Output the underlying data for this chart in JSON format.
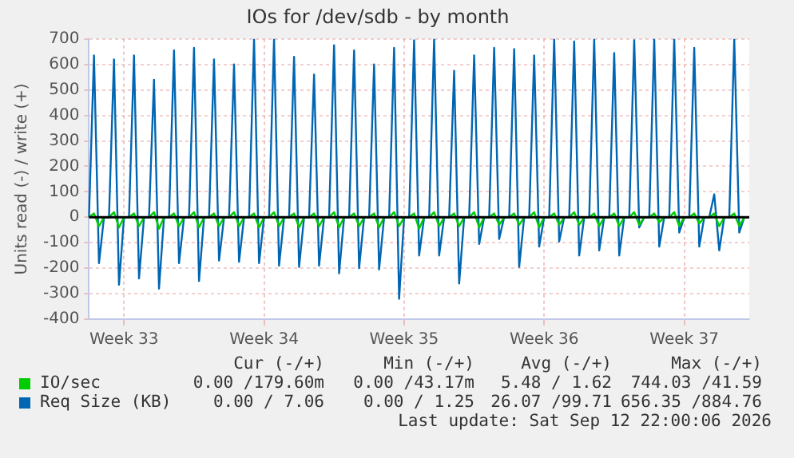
{
  "chart_data": {
    "type": "line",
    "title": "IOs for /dev/sdb - by month",
    "ylabel": "Units read (-) / write (+)",
    "categories": [
      null,
      null,
      null,
      null,
      null,
      null,
      null,
      "Week 33",
      null,
      null,
      null,
      null,
      null,
      null,
      null,
      null,
      null,
      null,
      null,
      null,
      null,
      null,
      null,
      null,
      null,
      null,
      null,
      null,
      null,
      null,
      null,
      null,
      null,
      null,
      null,
      "Week 34",
      null,
      null,
      null,
      null,
      null,
      null,
      null,
      null,
      null,
      null,
      null,
      null,
      null,
      null,
      null,
      null,
      null,
      null,
      null,
      null,
      null,
      null,
      null,
      null,
      null,
      null,
      null,
      "Week 35",
      null,
      null,
      null,
      null,
      null,
      null,
      null,
      null,
      null,
      null,
      null,
      null,
      null,
      null,
      null,
      null,
      null,
      null,
      null,
      null,
      null,
      null,
      null,
      null,
      null,
      null,
      null,
      "Week 36",
      null,
      null,
      null,
      null,
      null,
      null,
      null,
      null,
      null,
      null,
      null,
      null,
      null,
      null,
      null,
      null,
      null,
      null,
      null,
      null,
      null,
      null,
      null,
      null,
      null,
      null,
      null,
      "Week 37",
      null,
      null,
      null,
      null,
      null,
      null,
      null,
      null,
      null,
      null,
      null,
      null,
      null
    ],
    "series": [
      {
        "name": "IO/sec",
        "color": "#00cc00",
        "values": [
          0,
          15,
          -35,
          0,
          0,
          20,
          -40,
          0,
          0,
          15,
          -35,
          0,
          0,
          20,
          -45,
          0,
          0,
          15,
          -35,
          0,
          0,
          20,
          -40,
          0,
          0,
          15,
          -35,
          0,
          0,
          20,
          -35,
          0,
          0,
          15,
          -40,
          0,
          0,
          20,
          -35,
          0,
          0,
          15,
          -40,
          0,
          0,
          15,
          -35,
          0,
          0,
          20,
          -40,
          0,
          0,
          15,
          -35,
          0,
          0,
          15,
          -40,
          0,
          0,
          20,
          -35,
          0,
          0,
          15,
          -45,
          0,
          0,
          20,
          -35,
          0,
          0,
          15,
          -35,
          0,
          0,
          20,
          -40,
          0,
          0,
          15,
          -30,
          0,
          0,
          15,
          -30,
          0,
          0,
          20,
          -40,
          0,
          0,
          15,
          -30,
          0,
          0,
          20,
          -30,
          0,
          0,
          15,
          -35,
          0,
          0,
          15,
          -35,
          0,
          0,
          20,
          -30,
          0,
          0,
          15,
          -20,
          0,
          0,
          20,
          -35,
          0,
          0,
          15,
          -25,
          0,
          0,
          15,
          -35,
          0,
          0,
          15,
          -35,
          0,
          0
        ]
      },
      {
        "name": "Req Size (KB)",
        "color": "#0066b3",
        "values": [
          0,
          635,
          -180,
          0,
          0,
          620,
          -265,
          0,
          0,
          635,
          -240,
          0,
          0,
          540,
          -280,
          0,
          0,
          655,
          -180,
          0,
          0,
          665,
          -250,
          0,
          0,
          620,
          -170,
          0,
          0,
          600,
          -175,
          0,
          0,
          700,
          -180,
          0,
          0,
          700,
          -190,
          0,
          0,
          630,
          -195,
          0,
          0,
          560,
          -190,
          0,
          0,
          675,
          -220,
          0,
          0,
          655,
          -200,
          0,
          0,
          600,
          -205,
          0,
          0,
          665,
          -320,
          0,
          0,
          695,
          -150,
          0,
          0,
          700,
          -150,
          0,
          0,
          575,
          -260,
          0,
          0,
          635,
          -105,
          0,
          0,
          665,
          -85,
          0,
          0,
          660,
          -195,
          0,
          0,
          635,
          -115,
          0,
          0,
          700,
          -95,
          0,
          0,
          690,
          -150,
          0,
          0,
          700,
          -130,
          0,
          0,
          645,
          -150,
          0,
          0,
          695,
          -40,
          0,
          0,
          700,
          -115,
          0,
          0,
          700,
          -60,
          0,
          0,
          665,
          -115,
          0,
          0,
          90,
          -130,
          0,
          0,
          700,
          -60,
          0,
          0
        ]
      }
    ],
    "ylim": [
      -400,
      700
    ],
    "yticks": [
      -400,
      -300,
      -200,
      -100,
      0,
      100,
      200,
      300,
      400,
      500,
      600,
      700
    ],
    "ref_lines": [
      {
        "axis": "y",
        "value": 0,
        "color": "#000000"
      }
    ],
    "grid": true,
    "legend": "bottom",
    "annotations": [
      "Cur (-/+)",
      "Min (-/+)",
      "Avg (-/+)",
      "Max (-/+)",
      "0.00 /179.60m",
      "0.00 /43.17m",
      "5.48 / 1.62",
      "744.03 /41.59",
      "0.00 / 7.06",
      "0.00 / 1.25",
      "26.07 /99.71",
      "656.35 /884.76",
      "Last update: Sat Sep 12 22:00:06 2026"
    ]
  }
}
